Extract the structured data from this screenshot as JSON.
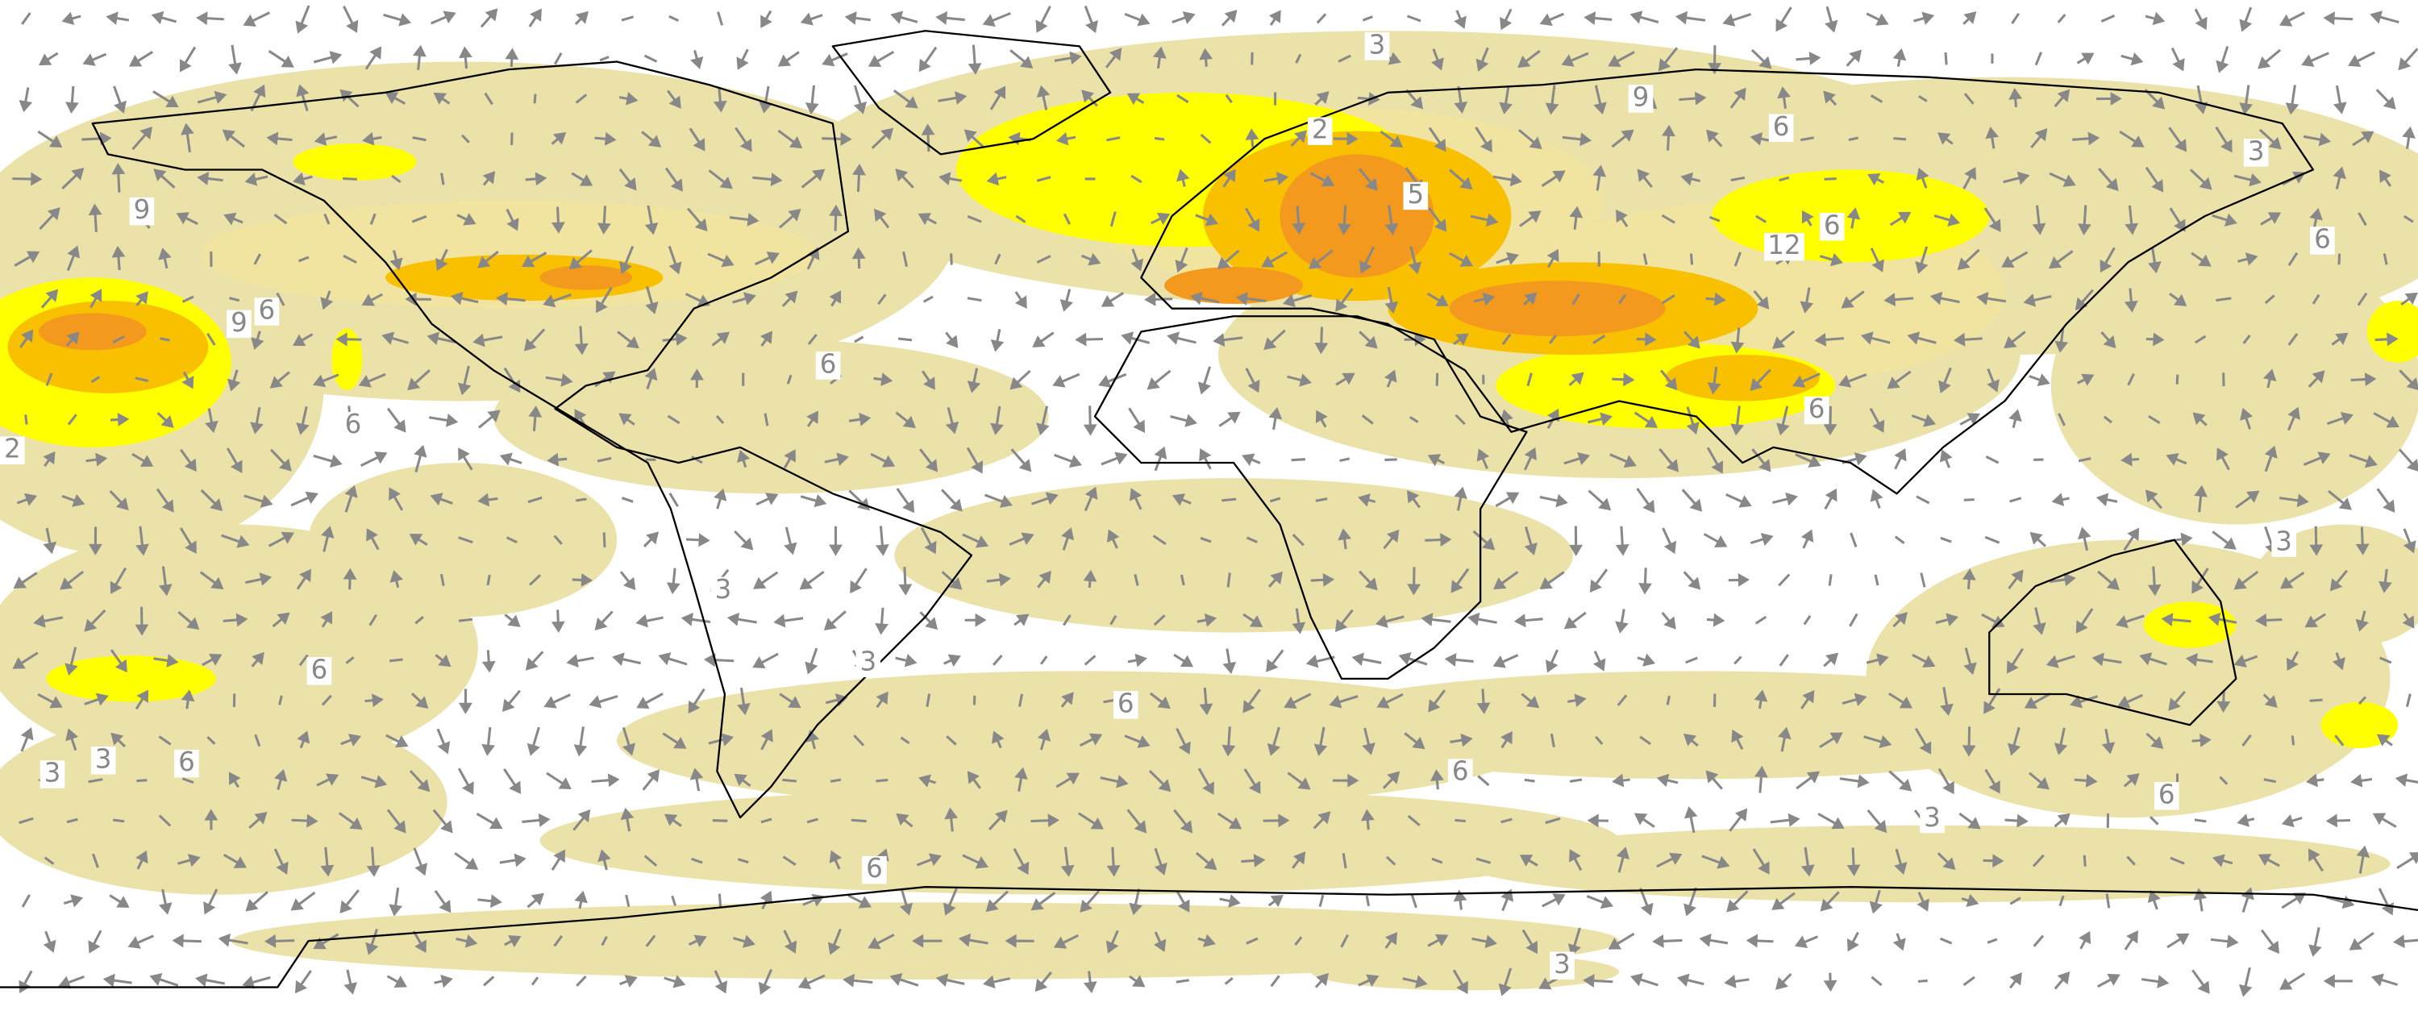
{
  "contour_labels": [
    "9",
    "9",
    "6",
    "2",
    "6",
    "6",
    "3",
    "9",
    "6",
    "5",
    "2",
    "12",
    "6",
    "3",
    "6",
    "6",
    "3",
    "6",
    "3",
    "3",
    "3",
    "6",
    "6",
    "6",
    "3",
    "6",
    "6",
    "3",
    "3"
  ]
}
